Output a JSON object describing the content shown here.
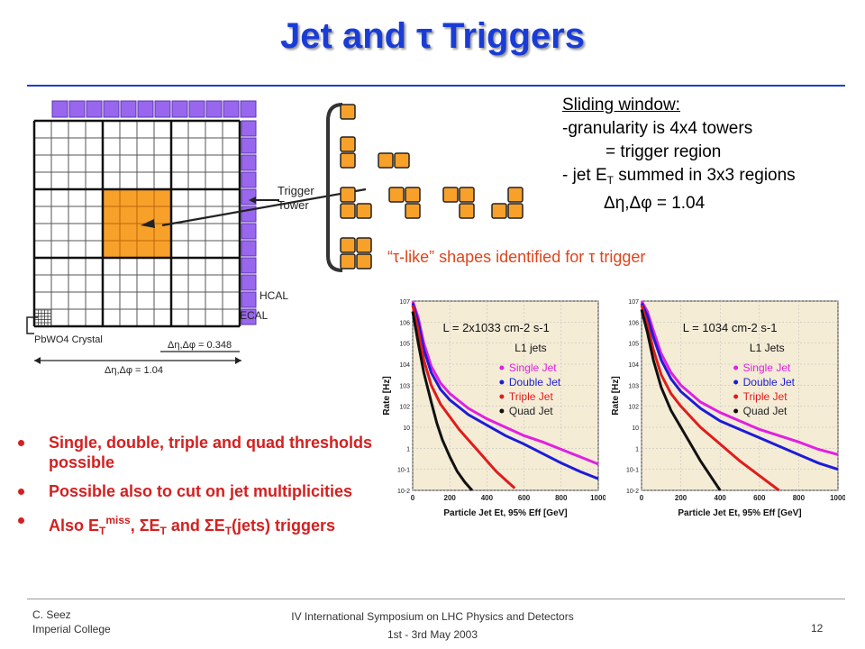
{
  "slide": {
    "title": "Jet and τ Triggers",
    "page_number": "12"
  },
  "diagram": {
    "trigger_tower_line1": "Trigger",
    "trigger_tower_line2": "Tower",
    "hcal_label": "HCAL",
    "ecal_label": "ECAL",
    "crystal_label": "PbWO4 Crystal",
    "tower_size_label": "Δη,Δφ = 0.348",
    "region_size_label": "Δη,Δφ = 1.04"
  },
  "sliding_window": {
    "heading": "Sliding window:",
    "line1": "-granularity is 4x4 towers",
    "line2": "= trigger region",
    "line3_pre": "- jet E",
    "line3_sub": "T",
    "line3_post": " summed in 3x3 regions",
    "line4": "Δη,Δφ = 1.04"
  },
  "tau_caption": {
    "text": "“τ-like” shapes identified for τ trigger"
  },
  "bullets": {
    "b1": "Single, double, triple and quad thresholds possible",
    "b2": "Possible also to cut on jet multiplicities",
    "b3_pre": "Also E",
    "b3_sub1": "T",
    "b3_sup1": "miss",
    "b3_mid1": ", ΣE",
    "b3_sub2": "T",
    "b3_mid2": " and ΣE",
    "b3_sub3": "T",
    "b3_post": "(jets) triggers"
  },
  "footer": {
    "author_line1": "C. Seez",
    "author_line2": "Imperial College",
    "conf_line1": "IV International Symposium on LHC Physics and Detectors",
    "conf_line2": "1st - 3rd May 2003"
  },
  "chart_data": [
    {
      "type": "line",
      "title": "L = 2x10^33 cm^-2 s^-1",
      "subtitle": "L1 jets",
      "xlabel": "Particle Jet Et, 95% Eff [GeV]",
      "ylabel": "Rate [Hz]",
      "xlim": [
        0,
        1000
      ],
      "ylim_log10": [
        -2,
        7
      ],
      "x_ticks": [
        "0",
        "200",
        "400",
        "600",
        "800",
        "1000"
      ],
      "y_ticks": [
        "10^7",
        "10^6",
        "10^5",
        "10^4",
        "10^3",
        "10^2",
        "10",
        "1",
        "10^-1",
        "10^-2"
      ],
      "legend_position": "top-right",
      "series": [
        {
          "name": "Single Jet",
          "color": "#e020e0",
          "marker": "triangle-up",
          "x": [
            0,
            30,
            60,
            100,
            150,
            200,
            300,
            400,
            500,
            600,
            700,
            800,
            900,
            1000
          ],
          "log10_rate": [
            7.0,
            6.2,
            5.0,
            3.9,
            3.1,
            2.6,
            1.9,
            1.4,
            1.0,
            0.6,
            0.3,
            -0.05,
            -0.4,
            -0.75
          ]
        },
        {
          "name": "Double Jet",
          "color": "#1c1cd8",
          "marker": "triangle-down",
          "x": [
            0,
            30,
            60,
            100,
            150,
            200,
            300,
            400,
            500,
            600,
            700,
            800,
            900,
            1000
          ],
          "log10_rate": [
            6.9,
            6.0,
            4.7,
            3.6,
            2.8,
            2.3,
            1.6,
            1.1,
            0.6,
            0.2,
            -0.25,
            -0.7,
            -1.1,
            -1.45
          ]
        },
        {
          "name": "Triple Jet",
          "color": "#e01c1c",
          "marker": "square",
          "x": [
            0,
            30,
            60,
            100,
            150,
            200,
            250,
            300,
            350,
            400,
            450,
            500,
            550
          ],
          "log10_rate": [
            6.8,
            5.6,
            4.2,
            3.0,
            2.1,
            1.5,
            0.9,
            0.4,
            -0.1,
            -0.6,
            -1.1,
            -1.5,
            -1.9
          ]
        },
        {
          "name": "Quad Jet",
          "color": "#111111",
          "marker": "circle",
          "x": [
            0,
            30,
            60,
            100,
            130,
            160,
            200,
            240,
            280,
            320
          ],
          "log10_rate": [
            6.5,
            5.0,
            3.6,
            2.2,
            1.2,
            0.4,
            -0.4,
            -1.1,
            -1.6,
            -2.0
          ]
        }
      ]
    },
    {
      "type": "line",
      "title": "L = 10^34 cm^-2 s^-1",
      "subtitle": "L1 Jets",
      "xlabel": "Particle Jet Et, 95% Eff [GeV]",
      "ylabel": "Rate [Hz]",
      "xlim": [
        0,
        1000
      ],
      "ylim_log10": [
        -2,
        7
      ],
      "x_ticks": [
        "0",
        "200",
        "400",
        "600",
        "800",
        "1000"
      ],
      "y_ticks": [
        "10^7",
        "10^6",
        "10^5",
        "10^4",
        "10^3",
        "10^2",
        "10",
        "1",
        "10^-1",
        "10^-2"
      ],
      "legend_position": "top-right",
      "series": [
        {
          "name": "Single Jet",
          "color": "#e020e0",
          "marker": "triangle-up",
          "x": [
            0,
            30,
            60,
            100,
            150,
            200,
            300,
            400,
            500,
            600,
            700,
            800,
            900,
            1000
          ],
          "log10_rate": [
            7.0,
            6.5,
            5.6,
            4.5,
            3.6,
            3.0,
            2.2,
            1.7,
            1.3,
            0.9,
            0.6,
            0.3,
            -0.05,
            -0.3
          ]
        },
        {
          "name": "Double Jet",
          "color": "#1c1cd8",
          "marker": "triangle-down",
          "x": [
            0,
            30,
            60,
            100,
            150,
            200,
            300,
            400,
            500,
            600,
            700,
            800,
            900,
            1000
          ],
          "log10_rate": [
            6.9,
            6.3,
            5.3,
            4.2,
            3.3,
            2.7,
            1.9,
            1.3,
            0.9,
            0.5,
            0.1,
            -0.3,
            -0.7,
            -1.0
          ]
        },
        {
          "name": "Triple Jet",
          "color": "#e01c1c",
          "marker": "square",
          "x": [
            0,
            30,
            60,
            100,
            150,
            200,
            300,
            400,
            500,
            600,
            700
          ],
          "log10_rate": [
            6.8,
            5.9,
            4.7,
            3.5,
            2.6,
            2.0,
            1.0,
            0.2,
            -0.6,
            -1.3,
            -2.0
          ]
        },
        {
          "name": "Quad Jet",
          "color": "#111111",
          "marker": "circle",
          "x": [
            0,
            30,
            60,
            100,
            150,
            200,
            250,
            300,
            350,
            400
          ],
          "log10_rate": [
            6.6,
            5.5,
            4.2,
            2.9,
            1.8,
            1.0,
            0.2,
            -0.6,
            -1.3,
            -2.0
          ]
        }
      ]
    }
  ]
}
